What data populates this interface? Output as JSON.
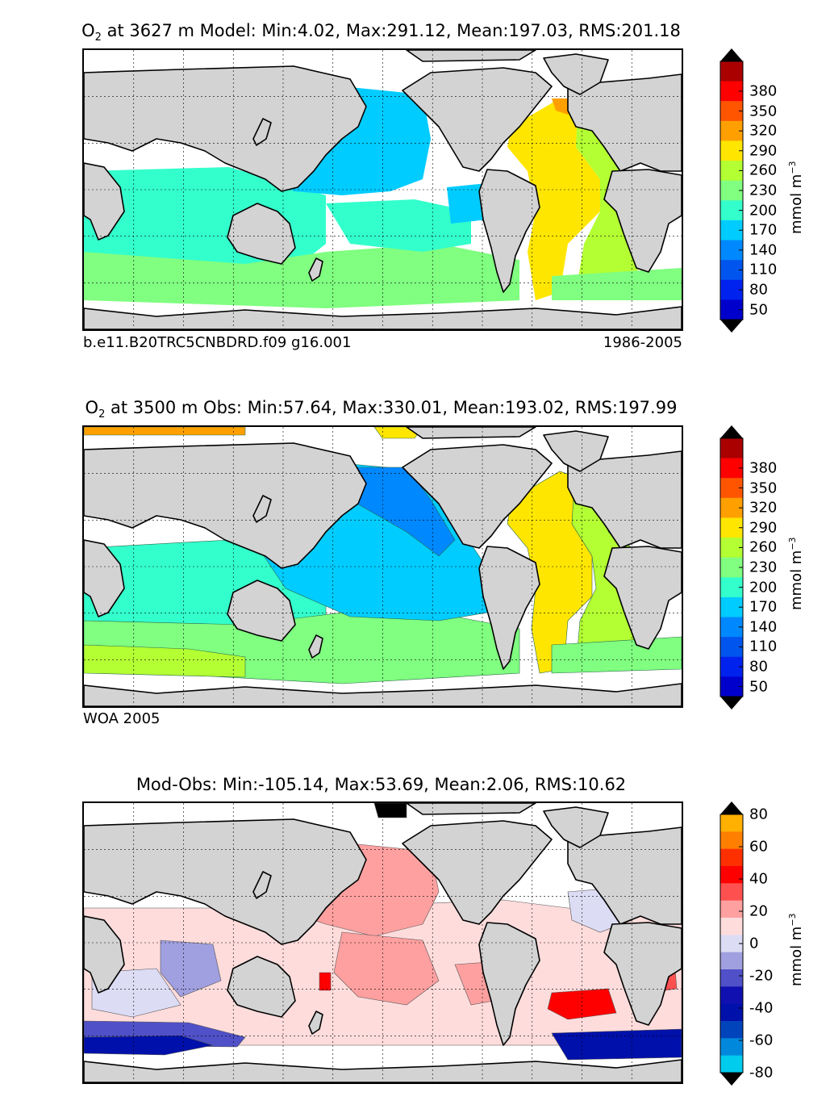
{
  "colors": {
    "land": "#d3d3d3",
    "ocean_missing": "#ffffff",
    "abs_levels": [
      "#000080",
      "#0000cd",
      "#0022ee",
      "#0055ee",
      "#0088ff",
      "#00ccff",
      "#33ffcc",
      "#80ff80",
      "#b3ff33",
      "#ffe600",
      "#ffa000",
      "#ff5500",
      "#ff0000",
      "#aa0000",
      "#7a0000"
    ],
    "diff_levels": [
      "#00ffff",
      "#00ccee",
      "#0088dd",
      "#0044bb",
      "#0010aa",
      "#1010b0",
      "#5050c8",
      "#a0a0e0",
      "#dcdcf5",
      "#ffdcdc",
      "#ffa0a0",
      "#ff5050",
      "#ff0000",
      "#ff3000",
      "#ff8000",
      "#ffb000",
      "#ffff00"
    ]
  },
  "chart_data": [
    {
      "type": "heatmap",
      "title_main": "O",
      "title_sub": "2",
      "title_rest": " at 3627 m Model: Min:4.02, Max:291.12, Mean:197.03, RMS:201.18",
      "footer_left": "b.e11.B20TRC5CNBDRD.f09 g16.001",
      "footer_right": "1986-2005",
      "colorbar": {
        "ticks": [
          "380",
          "350",
          "320",
          "290",
          "260",
          "230",
          "200",
          "170",
          "140",
          "110",
          "80",
          "50"
        ],
        "unit_main": "mmol m",
        "unit_sup": "−3",
        "extend": "both"
      },
      "grid": true
    },
    {
      "type": "heatmap",
      "title_main": "O",
      "title_sub": "2",
      "title_rest": " at 3500 m Obs: Min:57.64, Max:330.01, Mean:193.02, RMS:197.99",
      "footer_left": "WOA 2005",
      "footer_right": "",
      "colorbar": {
        "ticks": [
          "380",
          "350",
          "320",
          "290",
          "260",
          "230",
          "200",
          "170",
          "140",
          "110",
          "80",
          "50"
        ],
        "unit_main": "mmol m",
        "unit_sup": "−3",
        "extend": "both"
      },
      "grid": true
    },
    {
      "type": "heatmap",
      "title_main": "Mod-Obs: Min:-105.14, Max:53.69, Mean:2.06, RMS:10.62",
      "title_sub": "",
      "title_rest": "",
      "footer_left": "",
      "footer_right": "",
      "colorbar": {
        "ticks": [
          "80",
          "60",
          "40",
          "20",
          "0",
          "-20",
          "-40",
          "-60",
          "-80"
        ],
        "unit_main": "mmol m",
        "unit_sup": "−3",
        "extend": "both"
      },
      "grid": true
    }
  ]
}
